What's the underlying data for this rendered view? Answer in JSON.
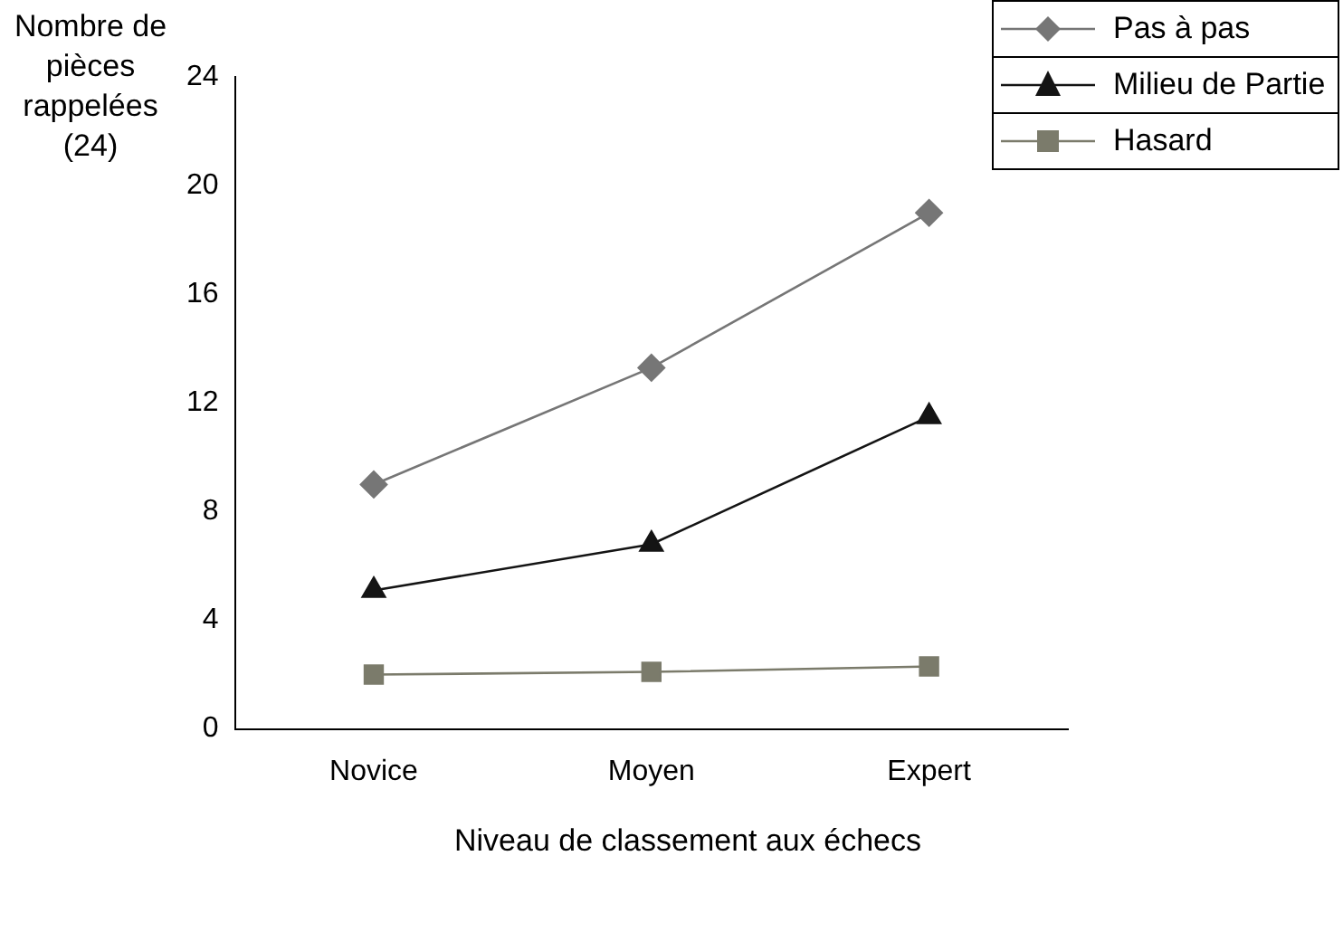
{
  "chart_data": {
    "type": "line",
    "xlabel": "Niveau de classement aux échecs",
    "ylabel": "Nombre de pièces rappelées (24)",
    "categories": [
      "Novice",
      "Moyen",
      "Expert"
    ],
    "series": [
      {
        "name": "Pas à pas",
        "color": "#767676",
        "marker": "diamond",
        "values": [
          9,
          13.3,
          19
        ]
      },
      {
        "name": "Milieu de Partie",
        "color": "#141414",
        "marker": "triangle",
        "values": [
          5.1,
          6.8,
          11.5
        ]
      },
      {
        "name": "Hasard",
        "color": "#7b7b6b",
        "marker": "square",
        "values": [
          2,
          2.1,
          2.3
        ]
      }
    ],
    "ylim": [
      0,
      24
    ],
    "yticks": [
      0,
      4,
      8,
      12,
      16,
      20,
      24
    ],
    "grid": false,
    "legend": "top right",
    "line_style": "solid"
  }
}
